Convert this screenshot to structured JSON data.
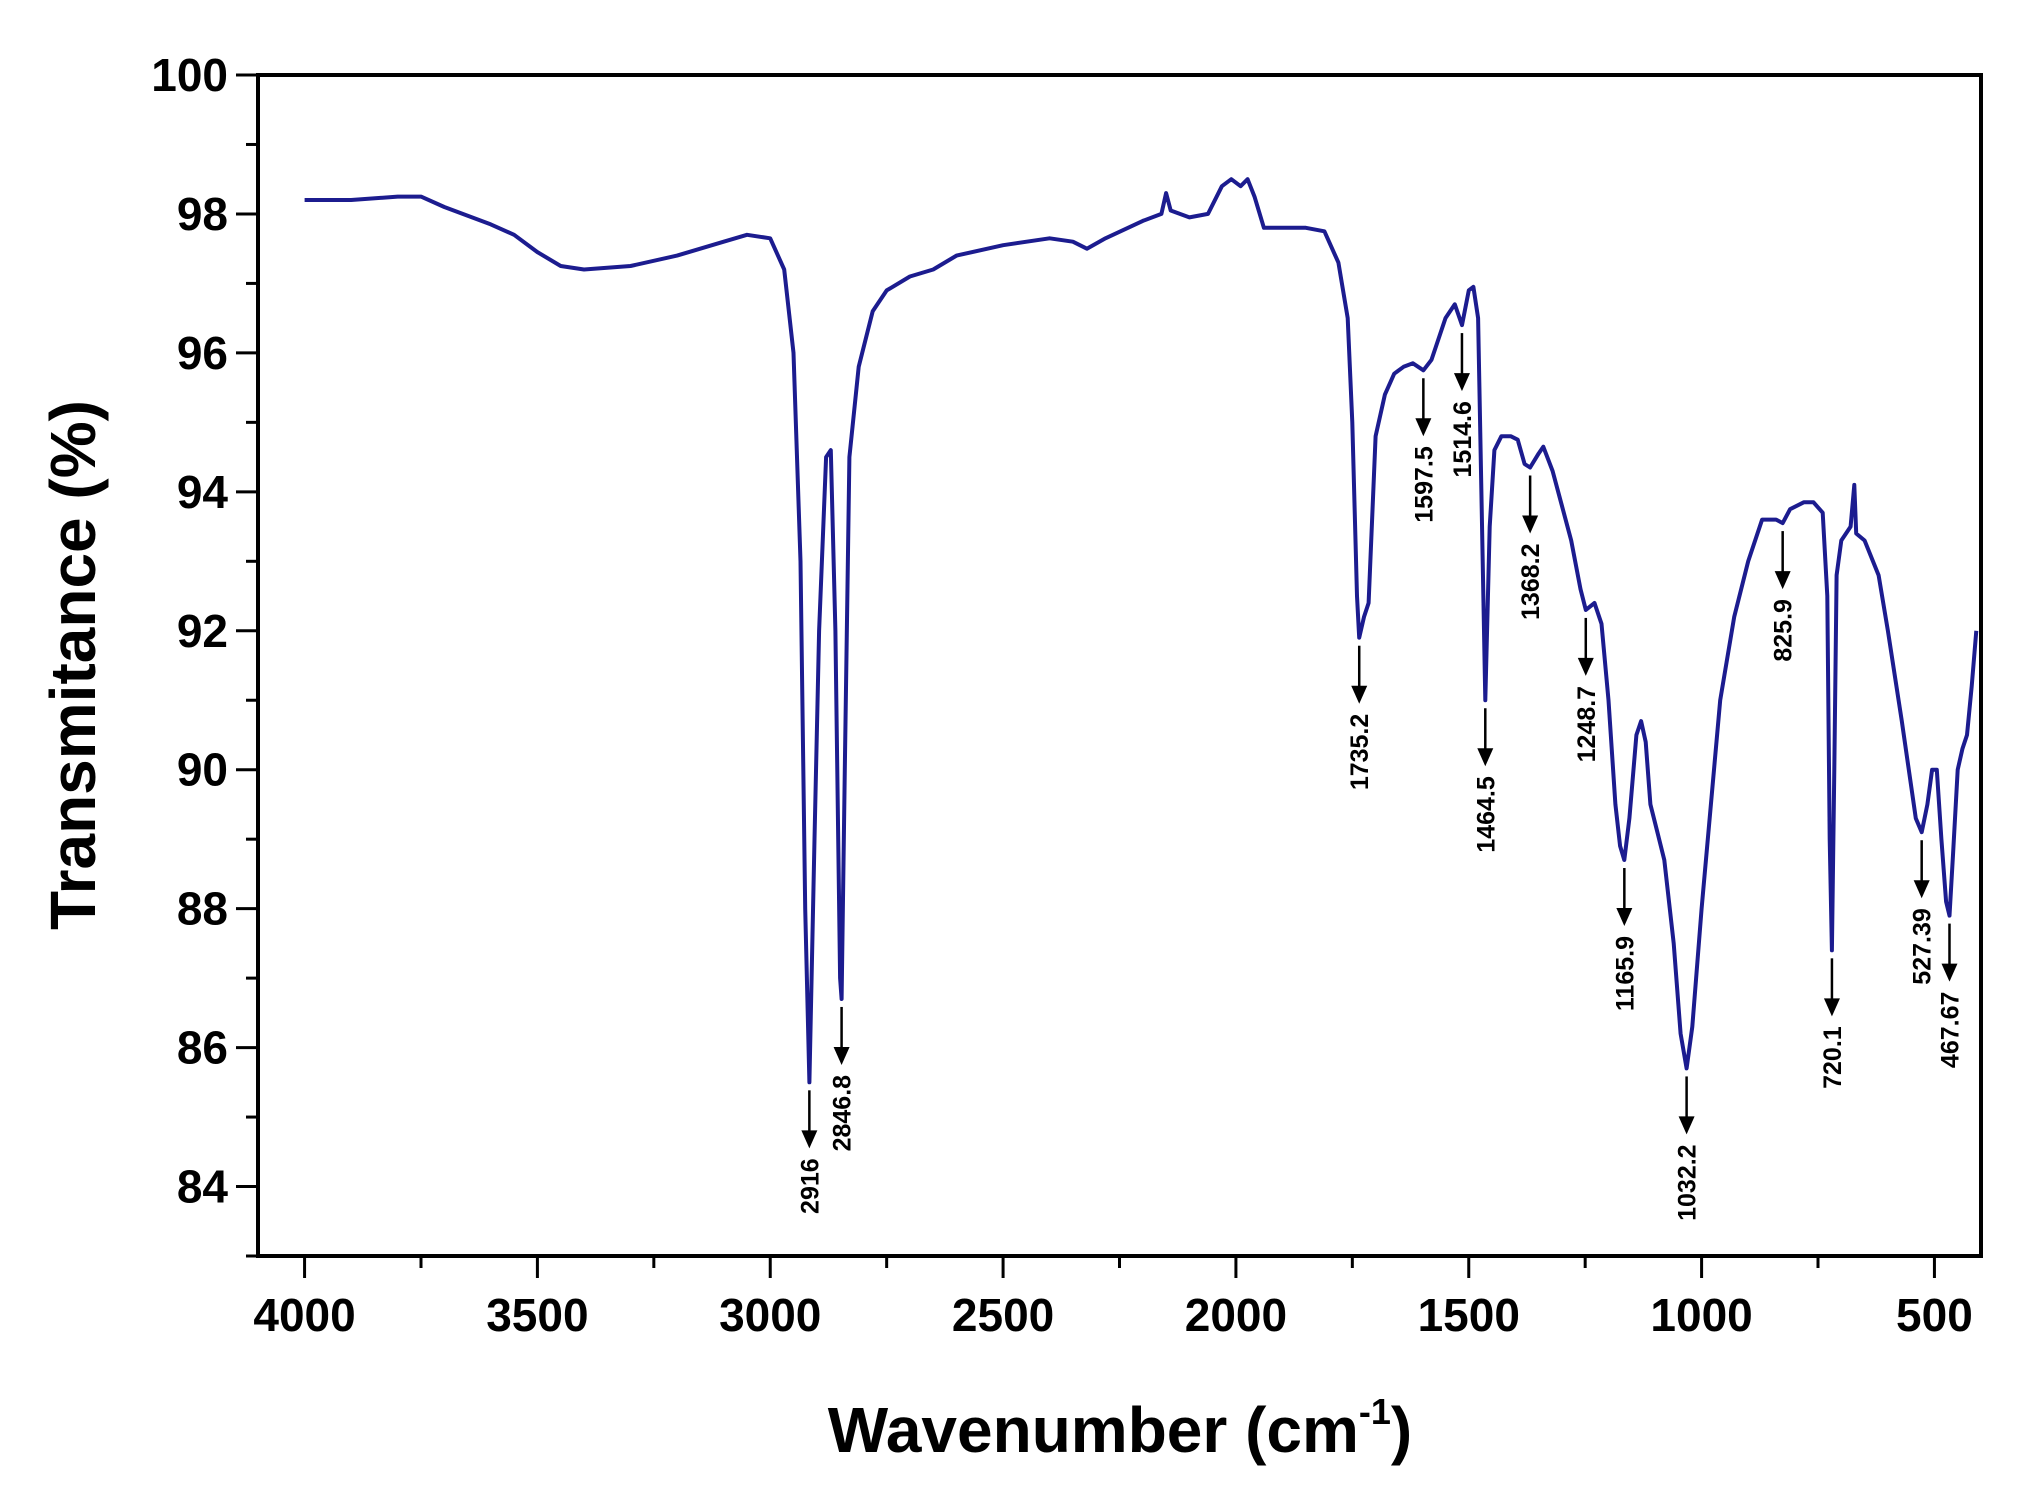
{
  "chart_data": {
    "type": "line",
    "title": "",
    "xlabel": "Wavenumber (cm",
    "xlabel_sup": "-1",
    "xlabel_end": ")",
    "ylabel": "Transmitance (%)",
    "xlim": [
      4100,
      400
    ],
    "ylim": [
      83,
      100
    ],
    "x_reversed": true,
    "grid": false,
    "line_color": "#1c1c8f",
    "xticks": [
      4000,
      3500,
      3000,
      2500,
      2000,
      1500,
      1000,
      500
    ],
    "yticks": [
      84,
      86,
      88,
      90,
      92,
      94,
      96,
      98,
      100
    ],
    "series": [
      {
        "x": [
          4000,
          3900,
          3800,
          3750,
          3700,
          3600,
          3550,
          3500,
          3450,
          3400,
          3300,
          3200,
          3100,
          3050,
          3000,
          2970,
          2950,
          2935,
          2925,
          2916,
          2905,
          2895,
          2880,
          2870,
          2860,
          2850,
          2846.8,
          2840,
          2830,
          2810,
          2780,
          2750,
          2700,
          2650,
          2600,
          2500,
          2400,
          2350,
          2320,
          2280,
          2200,
          2160,
          2150,
          2140,
          2100,
          2060,
          2030,
          2010,
          1990,
          1975,
          1960,
          1940,
          1850,
          1810,
          1780,
          1760,
          1750,
          1740,
          1735.2,
          1725,
          1715,
          1700,
          1680,
          1660,
          1640,
          1620,
          1597.5,
          1580,
          1550,
          1530,
          1514.6,
          1500,
          1490,
          1480,
          1470,
          1464.5,
          1455,
          1445,
          1430,
          1410,
          1395,
          1380,
          1368.2,
          1350,
          1340,
          1320,
          1300,
          1280,
          1260,
          1248.7,
          1230,
          1215,
          1200,
          1185,
          1175,
          1165.9,
          1155,
          1140,
          1130,
          1120,
          1110,
          1095,
          1080,
          1060,
          1045,
          1032.2,
          1020,
          1000,
          980,
          960,
          930,
          900,
          870,
          840,
          825.9,
          810,
          780,
          760,
          740,
          730,
          725,
          720.1,
          715,
          710,
          700,
          690,
          680,
          672,
          668,
          650,
          620,
          600,
          570,
          540,
          527.39,
          515,
          505,
          495,
          485,
          475,
          467.67,
          460,
          450,
          440,
          430,
          420,
          410
        ],
        "y": [
          98.2,
          98.2,
          98.25,
          98.25,
          98.1,
          97.85,
          97.7,
          97.45,
          97.25,
          97.2,
          97.25,
          97.4,
          97.6,
          97.7,
          97.65,
          97.2,
          96.0,
          93,
          88,
          85.5,
          89,
          92,
          94.5,
          94.6,
          92,
          87,
          86.7,
          90,
          94.5,
          95.8,
          96.6,
          96.9,
          97.1,
          97.2,
          97.4,
          97.55,
          97.65,
          97.6,
          97.5,
          97.65,
          97.9,
          98.0,
          98.3,
          98.05,
          97.95,
          98.0,
          98.4,
          98.5,
          98.4,
          98.5,
          98.25,
          97.8,
          97.8,
          97.75,
          97.3,
          96.5,
          95,
          92.5,
          91.9,
          92.2,
          92.4,
          94.8,
          95.4,
          95.7,
          95.8,
          95.85,
          95.75,
          95.9,
          96.5,
          96.7,
          96.4,
          96.9,
          96.95,
          96.5,
          93,
          91.0,
          93.5,
          94.6,
          94.8,
          94.8,
          94.75,
          94.4,
          94.35,
          94.55,
          94.65,
          94.3,
          93.8,
          93.3,
          92.6,
          92.3,
          92.4,
          92.1,
          91.0,
          89.5,
          88.9,
          88.7,
          89.3,
          90.5,
          90.7,
          90.4,
          89.5,
          89.1,
          88.7,
          87.5,
          86.2,
          85.7,
          86.3,
          88.0,
          89.5,
          91,
          92.2,
          93,
          93.6,
          93.6,
          93.55,
          93.75,
          93.85,
          93.85,
          93.7,
          92.5,
          89,
          87.4,
          90,
          92.8,
          93.3,
          93.4,
          93.5,
          94.1,
          93.4,
          93.3,
          92.8,
          92.0,
          90.7,
          89.3,
          89.1,
          89.5,
          90.0,
          90.0,
          89.0,
          88.1,
          87.9,
          88.8,
          90.0,
          90.3,
          90.5,
          91.2,
          92.0
        ]
      }
    ],
    "annotations": [
      {
        "label": "2916",
        "x": 2916,
        "y": 85.5
      },
      {
        "label": "2846.8",
        "x": 2846.8,
        "y": 86.7
      },
      {
        "label": "1735.2",
        "x": 1735.2,
        "y": 91.9
      },
      {
        "label": "1597.5",
        "x": 1597.5,
        "y": 95.75
      },
      {
        "label": "1514.6",
        "x": 1514.6,
        "y": 96.4
      },
      {
        "label": "1464.5",
        "x": 1464.5,
        "y": 91.0
      },
      {
        "label": "1368.2",
        "x": 1368.2,
        "y": 94.35
      },
      {
        "label": "1248.7",
        "x": 1248.7,
        "y": 92.3
      },
      {
        "label": "1165.9",
        "x": 1165.9,
        "y": 88.7
      },
      {
        "label": "1032.2",
        "x": 1032.2,
        "y": 85.7
      },
      {
        "label": "825.9",
        "x": 825.9,
        "y": 93.55
      },
      {
        "label": "720.1",
        "x": 720.1,
        "y": 87.4
      },
      {
        "label": "527.39",
        "x": 527.39,
        "y": 89.1
      },
      {
        "label": "467.67",
        "x": 467.67,
        "y": 87.9
      }
    ]
  }
}
